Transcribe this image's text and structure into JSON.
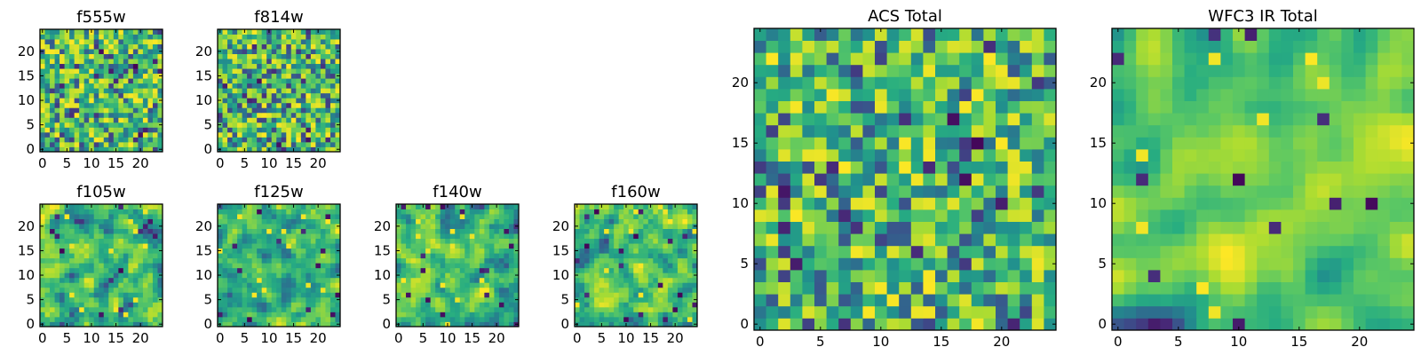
{
  "chart_data": [
    {
      "type": "heatmap",
      "title": "f555w",
      "grid": 25,
      "colormap": "viridis",
      "xlim": [
        -0.5,
        24.5
      ],
      "ylim": [
        -0.5,
        24.5
      ],
      "xticks": [
        "0",
        "5",
        "10",
        "15",
        "20"
      ],
      "yticks": [
        "0",
        "5",
        "10",
        "15",
        "20"
      ],
      "seed": 11,
      "smooth": 0,
      "low_seeds": 2,
      "high_seeds": 2
    },
    {
      "type": "heatmap",
      "title": "f814w",
      "grid": 25,
      "colormap": "viridis",
      "xlim": [
        -0.5,
        24.5
      ],
      "ylim": [
        -0.5,
        24.5
      ],
      "xticks": [
        "0",
        "5",
        "10",
        "15",
        "20"
      ],
      "yticks": [
        "0",
        "5",
        "10",
        "15",
        "20"
      ],
      "seed": 23,
      "smooth": 0,
      "low_seeds": 2,
      "high_seeds": 2
    },
    {
      "type": "heatmap",
      "title": "f105w",
      "grid": 25,
      "colormap": "viridis",
      "xlim": [
        -0.5,
        24.5
      ],
      "ylim": [
        -0.5,
        24.5
      ],
      "xticks": [
        "0",
        "5",
        "10",
        "15",
        "20"
      ],
      "yticks": [
        "0",
        "5",
        "10",
        "15",
        "20"
      ],
      "seed": 37,
      "smooth": 1,
      "low_seeds": 3,
      "high_seeds": 3
    },
    {
      "type": "heatmap",
      "title": "f125w",
      "grid": 25,
      "colormap": "viridis",
      "xlim": [
        -0.5,
        24.5
      ],
      "ylim": [
        -0.5,
        24.5
      ],
      "xticks": [
        "0",
        "5",
        "10",
        "15",
        "20"
      ],
      "yticks": [
        "0",
        "5",
        "10",
        "15",
        "20"
      ],
      "seed": 41,
      "smooth": 1,
      "low_seeds": 3,
      "high_seeds": 3
    },
    {
      "type": "heatmap",
      "title": "f140w",
      "grid": 25,
      "colormap": "viridis",
      "xlim": [
        -0.5,
        24.5
      ],
      "ylim": [
        -0.5,
        24.5
      ],
      "xticks": [
        "0",
        "5",
        "10",
        "15",
        "20"
      ],
      "yticks": [
        "0",
        "5",
        "10",
        "15",
        "20"
      ],
      "seed": 53,
      "smooth": 1,
      "low_seeds": 4,
      "high_seeds": 3
    },
    {
      "type": "heatmap",
      "title": "f160w",
      "grid": 25,
      "colormap": "viridis",
      "xlim": [
        -0.5,
        24.5
      ],
      "ylim": [
        -0.5,
        24.5
      ],
      "xticks": [
        "0",
        "5",
        "10",
        "15",
        "20"
      ],
      "yticks": [
        "0",
        "5",
        "10",
        "15",
        "20"
      ],
      "seed": 67,
      "smooth": 1,
      "low_seeds": 4,
      "high_seeds": 3
    },
    {
      "type": "heatmap",
      "title": "ACS Total",
      "grid": 25,
      "colormap": "viridis",
      "xlim": [
        -0.5,
        24.5
      ],
      "ylim": [
        -0.5,
        24.5
      ],
      "xticks": [
        "0",
        "5",
        "10",
        "15",
        "20"
      ],
      "yticks": [
        "0",
        "5",
        "10",
        "15",
        "20"
      ],
      "seed": 79,
      "smooth": 0,
      "low_seeds": 2,
      "high_seeds": 2
    },
    {
      "type": "heatmap",
      "title": "WFC3 IR Total",
      "grid": 25,
      "colormap": "viridis",
      "xlim": [
        -0.5,
        24.5
      ],
      "ylim": [
        -0.5,
        24.5
      ],
      "xticks": [
        "0",
        "5",
        "10",
        "15",
        "20"
      ],
      "yticks": [
        "0",
        "5",
        "10",
        "15",
        "20"
      ],
      "seed": 97,
      "smooth": 2,
      "low_seeds": 3,
      "high_seeds": 2
    }
  ]
}
